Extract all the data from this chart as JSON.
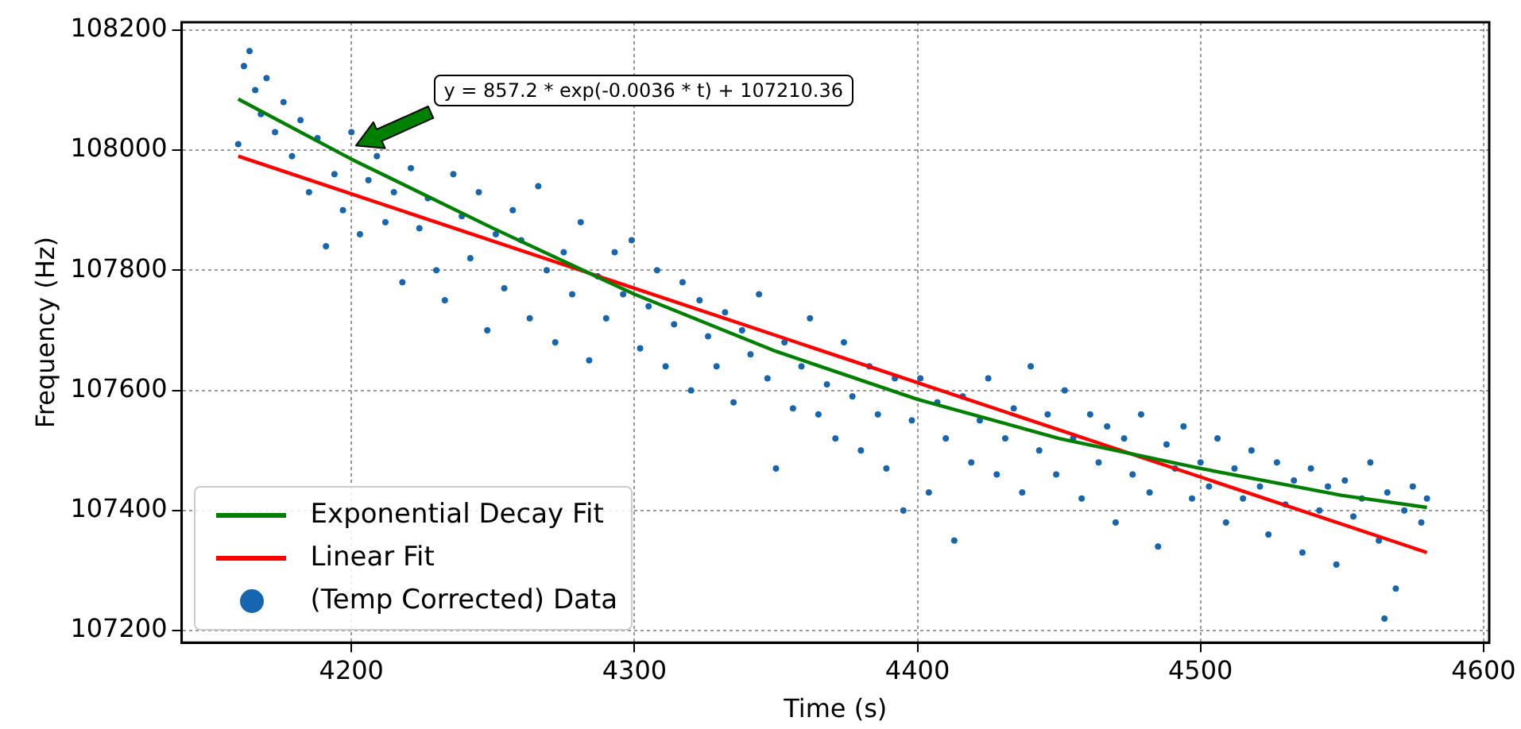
{
  "chart_data": {
    "type": "scatter",
    "xlabel": "Time (s)",
    "ylabel": "Frequency (Hz)",
    "xlim": [
      4140,
      4602
    ],
    "xticks": [
      4200,
      4300,
      4400,
      4500,
      4600
    ],
    "ylim": [
      107180,
      108213
    ],
    "yticks": [
      107200,
      107400,
      107600,
      107800,
      108000,
      108200
    ],
    "grid": true,
    "legend": "bottom left",
    "annotations": [
      "y = 857.2 * exp(-0.0036 * t) + 107210.36"
    ],
    "series": [
      {
        "name": "Exponential Decay Fit",
        "type": "line",
        "color": "#008000",
        "marker": "none",
        "x": [
          4160,
          4200,
          4250,
          4300,
          4350,
          4400,
          4450,
          4500,
          4550,
          4580
        ],
        "values": [
          108085,
          107985,
          107870,
          107760,
          107665,
          107585,
          107520,
          107470,
          107425,
          107405
        ]
      },
      {
        "name": "Linear Fit",
        "type": "line",
        "color": "#ff0000",
        "marker": "none",
        "x": [
          4160,
          4580
        ],
        "values": [
          107990,
          107330
        ]
      },
      {
        "name": "(Temp Corrected) Data",
        "type": "scatter",
        "color": "#1565b0",
        "marker": "circle",
        "x": [
          4160,
          4162,
          4164,
          4166,
          4168,
          4170,
          4173,
          4176,
          4179,
          4182,
          4185,
          4188,
          4191,
          4194,
          4197,
          4200,
          4203,
          4206,
          4209,
          4212,
          4215,
          4218,
          4221,
          4224,
          4227,
          4230,
          4233,
          4236,
          4239,
          4242,
          4245,
          4248,
          4251,
          4254,
          4257,
          4260,
          4263,
          4266,
          4269,
          4272,
          4275,
          4278,
          4281,
          4284,
          4287,
          4290,
          4293,
          4296,
          4299,
          4302,
          4305,
          4308,
          4311,
          4314,
          4317,
          4320,
          4323,
          4326,
          4329,
          4332,
          4335,
          4338,
          4341,
          4344,
          4347,
          4350,
          4353,
          4356,
          4359,
          4362,
          4365,
          4368,
          4371,
          4374,
          4377,
          4380,
          4383,
          4386,
          4389,
          4392,
          4395,
          4398,
          4401,
          4404,
          4407,
          4410,
          4413,
          4416,
          4419,
          4422,
          4425,
          4428,
          4431,
          4434,
          4437,
          4440,
          4443,
          4446,
          4449,
          4452,
          4455,
          4458,
          4461,
          4464,
          4467,
          4470,
          4473,
          4476,
          4479,
          4482,
          4485,
          4488,
          4491,
          4494,
          4497,
          4500,
          4503,
          4506,
          4509,
          4512,
          4515,
          4518,
          4521,
          4524,
          4527,
          4530,
          4533,
          4536,
          4539,
          4542,
          4545,
          4548,
          4551,
          4554,
          4557,
          4560,
          4563,
          4566,
          4569,
          4572,
          4575,
          4578,
          4580,
          4565
        ],
        "values": [
          108010,
          108140,
          108165,
          108100,
          108060,
          108120,
          108030,
          108080,
          107990,
          108050,
          107930,
          108020,
          107840,
          107960,
          107900,
          108030,
          107860,
          107950,
          107990,
          107880,
          107930,
          107780,
          107970,
          107870,
          107920,
          107800,
          107750,
          107960,
          107890,
          107820,
          107930,
          107700,
          107860,
          107770,
          107900,
          107850,
          107720,
          107940,
          107800,
          107680,
          107830,
          107760,
          107880,
          107650,
          107790,
          107720,
          107830,
          107760,
          107850,
          107670,
          107740,
          107800,
          107640,
          107710,
          107780,
          107600,
          107750,
          107690,
          107640,
          107730,
          107580,
          107700,
          107660,
          107760,
          107620,
          107470,
          107680,
          107570,
          107640,
          107720,
          107560,
          107610,
          107520,
          107680,
          107590,
          107500,
          107640,
          107560,
          107470,
          107620,
          107400,
          107550,
          107620,
          107430,
          107580,
          107520,
          107350,
          107590,
          107480,
          107550,
          107620,
          107460,
          107520,
          107570,
          107430,
          107640,
          107500,
          107560,
          107460,
          107600,
          107520,
          107420,
          107560,
          107480,
          107540,
          107380,
          107520,
          107460,
          107560,
          107430,
          107340,
          107510,
          107470,
          107540,
          107420,
          107480,
          107440,
          107520,
          107380,
          107470,
          107420,
          107500,
          107440,
          107360,
          107480,
          107410,
          107450,
          107330,
          107470,
          107400,
          107440,
          107310,
          107450,
          107390,
          107420,
          107480,
          107350,
          107430,
          107270,
          107400,
          107440,
          107380,
          107420,
          107220
        ]
      }
    ]
  }
}
